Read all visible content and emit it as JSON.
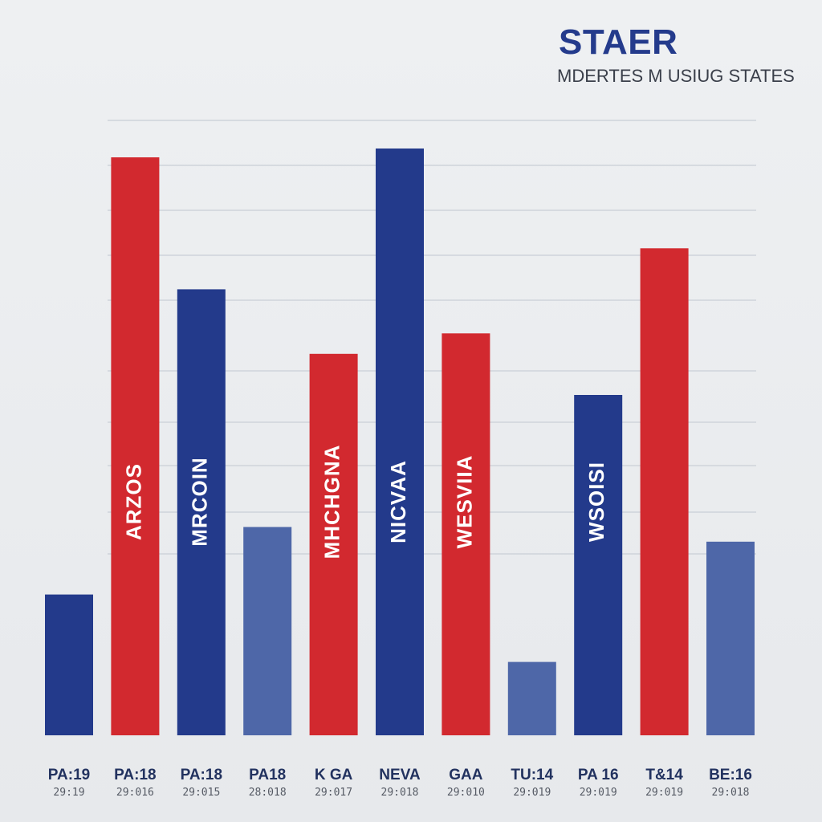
{
  "chart_data": {
    "type": "bar",
    "title": "STAER",
    "subtitle": "MDERTES M USIUG STATES",
    "xlabel": "",
    "ylabel": "",
    "ylim": [
      0,
      100
    ],
    "grid": true,
    "categories": [
      "PA:19",
      "PA:18",
      "PA:18",
      "PA18",
      "K GA",
      "NEVA",
      "GAA",
      "TU:14",
      "PA 16",
      "T&14",
      "BE:16"
    ],
    "sublabels": [
      "29:19",
      "29:016",
      "29:015",
      "28:018",
      "29:017",
      "29:018",
      "29:010",
      "29:019",
      "29:019",
      "29:019",
      "29:018"
    ],
    "values": [
      24,
      98.5,
      76,
      35.5,
      65,
      100,
      68.5,
      12.5,
      58,
      83,
      33
    ],
    "bar_texts": [
      "",
      "ARZOS",
      "MRCOIN",
      "",
      "MHCHGNA",
      "NICVAA",
      "WESVIIA",
      "",
      "WSOISI",
      "",
      ""
    ],
    "bar_colors": [
      "#233a8b",
      "#d2292f",
      "#233a8b",
      "#4e67a8",
      "#d2292f",
      "#233a8b",
      "#d2292f",
      "#4e67a8",
      "#233a8b",
      "#d2292f",
      "#4e67a8"
    ]
  },
  "colors": {
    "background": "#eceef0",
    "title": "#243b8c",
    "gridline": "#c9ced6"
  }
}
